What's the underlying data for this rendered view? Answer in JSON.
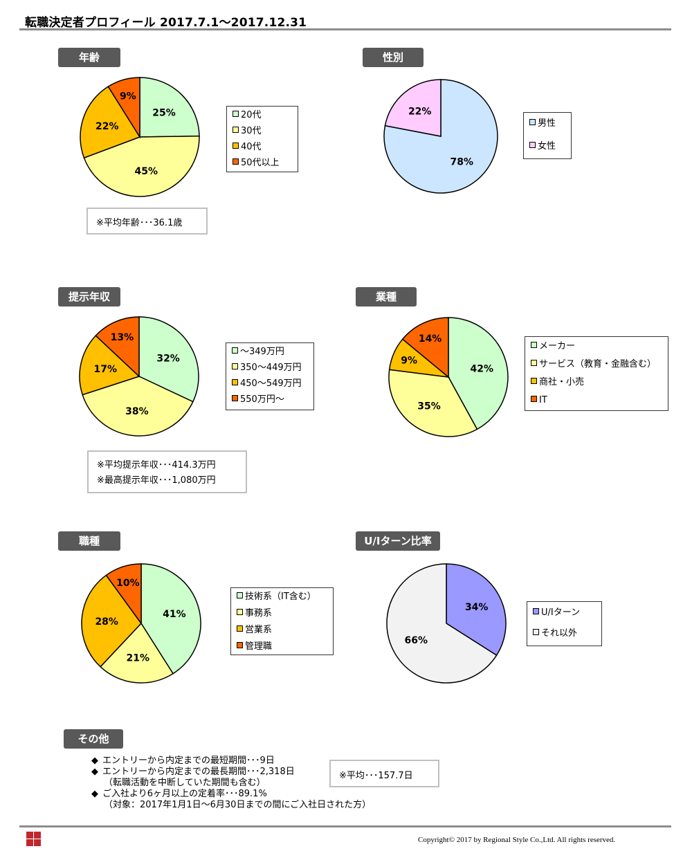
{
  "page_title": "転職決定者プロフィール  2017.7.1～2017.12.31",
  "colors": {
    "tag_bg": "#595959",
    "rule": "#8c8c8c",
    "green": "#ccffcc",
    "yellow": "#ffff99",
    "amber": "#ffc000",
    "orange": "#ff6600",
    "lightblue": "#cce6ff",
    "pink": "#ffccff",
    "lavender": "#9999ff",
    "lightgray": "#f2f2f2"
  },
  "sections": {
    "age": {
      "tag": "年齢",
      "note": "※平均年齢･･･36.1歳"
    },
    "gender": {
      "tag": "性別"
    },
    "salary": {
      "tag": "提示年収",
      "note1": "※平均提示年収･･･414.3万円",
      "note2": "※最高提示年収･･･1,080万円"
    },
    "industry": {
      "tag": "業種"
    },
    "job": {
      "tag": "職種"
    },
    "ui": {
      "tag": "U/Iターン比率"
    },
    "other": {
      "tag": "その他",
      "bullet": "◆",
      "line1": "エントリーから内定までの最短期間･･･9日",
      "line2": "エントリーから内定までの最長期間･･･2,318日",
      "line2_sub": "（転職活動を中断していた期間も含む）",
      "line3": "ご入社より6ヶ月以上の定着率･･･89.1%",
      "line3_sub": "（対象：2017年1月1日～6月30日までの間にご入社日された方）",
      "avg_note": "※平均･･･157.7日"
    }
  },
  "chart_data": [
    {
      "id": "age",
      "type": "pie",
      "labels": [
        "20代",
        "30代",
        "40代",
        "50代以上"
      ],
      "values": [
        25,
        45,
        22,
        9
      ],
      "data_labels": [
        "25%",
        "45%",
        "22%",
        "9%"
      ],
      "colors": [
        "#ccffcc",
        "#ffff99",
        "#ffc000",
        "#ff6600"
      ]
    },
    {
      "id": "gender",
      "type": "pie",
      "labels": [
        "男性",
        "女性"
      ],
      "values": [
        78,
        22
      ],
      "data_labels": [
        "78%",
        "22%"
      ],
      "colors": [
        "#cce6ff",
        "#ffccff"
      ]
    },
    {
      "id": "salary",
      "type": "pie",
      "labels": [
        "～349万円",
        "350～449万円",
        "450～549万円",
        "550万円～"
      ],
      "values": [
        32,
        38,
        17,
        13
      ],
      "data_labels": [
        "32%",
        "38%",
        "17%",
        "13%"
      ],
      "colors": [
        "#ccffcc",
        "#ffff99",
        "#ffc000",
        "#ff6600"
      ]
    },
    {
      "id": "industry",
      "type": "pie",
      "labels": [
        "メーカー",
        "サービス（教育・金融含む）",
        "商社・小売",
        "IT"
      ],
      "values": [
        42,
        35,
        9,
        14
      ],
      "data_labels": [
        "42%",
        "35%",
        "9%",
        "14%"
      ],
      "colors": [
        "#ccffcc",
        "#ffff99",
        "#ffc000",
        "#ff6600"
      ]
    },
    {
      "id": "job",
      "type": "pie",
      "labels": [
        "技術系（IT含む）",
        "事務系",
        "営業系",
        "管理職"
      ],
      "values": [
        41,
        21,
        28,
        10
      ],
      "data_labels": [
        "41%",
        "21%",
        "28%",
        "10%"
      ],
      "colors": [
        "#ccffcc",
        "#ffff99",
        "#ffc000",
        "#ff6600"
      ]
    },
    {
      "id": "ui",
      "type": "pie",
      "labels": [
        "U/Iターン",
        "それ以外"
      ],
      "values": [
        34,
        66
      ],
      "data_labels": [
        "34%",
        "66%"
      ],
      "colors": [
        "#9999ff",
        "#f2f2f2"
      ]
    }
  ],
  "footer": {
    "copyright": "Copyright© 2017 by Regional Style Co.,Ltd. All rights reserved."
  }
}
